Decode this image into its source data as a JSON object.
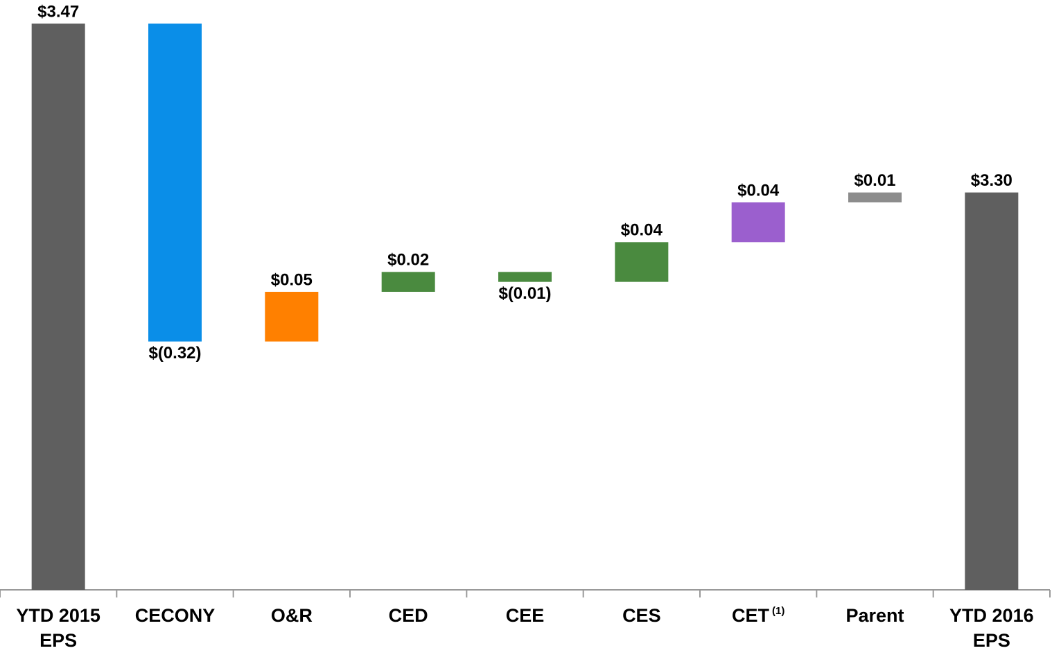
{
  "chart_data": {
    "type": "waterfall",
    "categories": [
      "YTD 2015\nEPS",
      "CECONY",
      "O&R",
      "CED",
      "CEE",
      "CES",
      "CET",
      "Parent",
      "YTD 2016\nEPS"
    ],
    "category_superscripts": [
      null,
      null,
      null,
      null,
      null,
      null,
      "(1)",
      null,
      null
    ],
    "values": [
      3.47,
      -0.32,
      0.05,
      0.02,
      -0.01,
      0.04,
      0.04,
      0.01,
      3.3
    ],
    "value_labels": [
      "$3.47",
      "$(0.32)",
      "$0.05",
      "$0.02",
      "$(0.01)",
      "$0.04",
      "$0.04",
      "$0.01",
      "$3.30"
    ],
    "is_total": [
      true,
      false,
      false,
      false,
      false,
      false,
      false,
      false,
      true
    ],
    "colors": [
      "#5f5f5f",
      "#0a8ee8",
      "#ff8000",
      "#4a8a3f",
      "#4a8a3f",
      "#4a8a3f",
      "#9b5fce",
      "#8c8c8c",
      "#5f5f5f"
    ],
    "ylim": [
      2.9,
      3.47
    ]
  }
}
